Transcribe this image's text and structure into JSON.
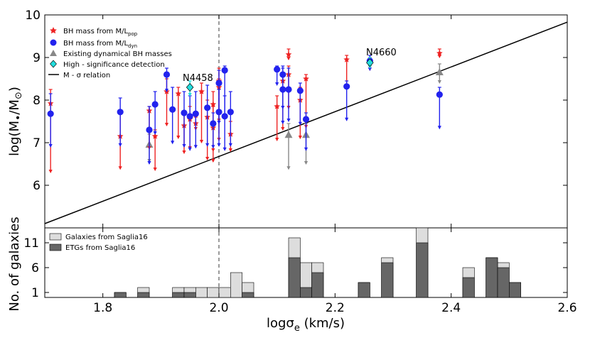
{
  "chart_data": [
    {
      "type": "scatter",
      "ylabel_main": "log(M",
      "ylabel_bullet": "•",
      "ylabel_mid": "/M",
      "ylabel_sun": "⊙",
      "ylabel_end": ")",
      "xlim": [
        1.7,
        2.6
      ],
      "ylim": [
        5.0,
        10.0
      ],
      "yticks": [
        "6",
        "7",
        "8",
        "9",
        "10"
      ],
      "legend": [
        {
          "label": "BH mass from M/L",
          "sub": "pop",
          "marker": "star",
          "color": "#ee2222"
        },
        {
          "label": "BH mass from M/L",
          "sub": "dyn",
          "marker": "circle",
          "color": "#2222ee"
        },
        {
          "label": "Existing dynamical BH masses",
          "sub": "",
          "marker": "triangle",
          "color": "#888888"
        },
        {
          "label": "High - significance detection",
          "sub": "",
          "marker": "diamond",
          "color": "#22dddd"
        },
        {
          "label": "M - σ relation",
          "sub": "",
          "marker": "line",
          "color": "#000000"
        }
      ],
      "annotations": [
        {
          "text": "N4458",
          "x": 1.95,
          "y": 8.55
        },
        {
          "text": "N4660",
          "x": 2.26,
          "y": 9.15
        }
      ],
      "relation_line": [
        [
          1.7,
          5.1
        ],
        [
          2.6,
          9.83
        ]
      ],
      "vline_x": 2.0,
      "series": [
        {
          "name": "BH mass from M/L_pop",
          "color": "#ee2222",
          "marker": "star",
          "points": [
            [
              1.71,
              7.92,
              6.3,
              8.25
            ],
            [
              1.83,
              7.15,
              6.38,
              7.75
            ],
            [
              1.88,
              7.75,
              6.85,
              7.85
            ],
            [
              1.89,
              7.15,
              6.35,
              7.3
            ],
            [
              1.91,
              8.2,
              7.4,
              8.5
            ],
            [
              1.93,
              8.15,
              7.1,
              8.3
            ],
            [
              1.94,
              7.4,
              6.75,
              7.75
            ],
            [
              1.95,
              7.55,
              6.85,
              7.85
            ],
            [
              1.96,
              7.45,
              7.3,
              7.6
            ],
            [
              1.97,
              8.2,
              7.0,
              8.4
            ],
            [
              1.98,
              7.6,
              6.6,
              8.0
            ],
            [
              1.99,
              7.35,
              6.55,
              7.85
            ],
            [
              1.99,
              7.9,
              6.8,
              8.2
            ],
            [
              2.0,
              8.45,
              7.05,
              8.75
            ],
            [
              2.0,
              8.3,
              7.5,
              8.5
            ],
            [
              2.02,
              7.2,
              6.8,
              7.5
            ],
            [
              2.1,
              7.85,
              7.05,
              8.1
            ],
            [
              2.11,
              8.45,
              7.3,
              8.6
            ],
            [
              2.12,
              8.6,
              7.8,
              8.8
            ],
            [
              2.12,
              9.07,
              8.95,
              9.2
            ],
            [
              2.14,
              8.0,
              7.1,
              8.3
            ],
            [
              2.15,
              8.5,
              7.35,
              8.6
            ],
            [
              2.22,
              8.95,
              8.3,
              9.05
            ],
            [
              2.26,
              8.85,
              8.7,
              9.0
            ],
            [
              2.38,
              9.1,
              9.0,
              9.2
            ]
          ]
        },
        {
          "name": "BH mass from M/L_dyn",
          "color": "#2222ee",
          "marker": "circle",
          "points": [
            [
              1.71,
              7.68,
              6.9,
              8.15
            ],
            [
              1.83,
              7.72,
              6.92,
              8.05
            ],
            [
              1.88,
              7.3,
              6.5,
              7.85
            ],
            [
              1.89,
              7.9,
              7.2,
              8.2
            ],
            [
              1.91,
              8.6,
              8.2,
              8.75
            ],
            [
              1.92,
              7.78,
              6.98,
              8.3
            ],
            [
              1.94,
              7.7,
              6.9,
              8.2
            ],
            [
              1.95,
              7.62,
              6.82,
              8.1
            ],
            [
              1.96,
              7.68,
              6.88,
              8.2
            ],
            [
              1.98,
              7.82,
              6.92,
              8.35
            ],
            [
              1.99,
              7.45,
              6.88,
              7.7
            ],
            [
              2.0,
              8.4,
              7.45,
              8.7
            ],
            [
              2.0,
              7.72,
              6.92,
              8.25
            ],
            [
              2.01,
              8.7,
              7.6,
              8.8
            ],
            [
              2.01,
              7.62,
              6.82,
              8.1
            ],
            [
              2.02,
              7.72,
              6.92,
              8.2
            ],
            [
              2.1,
              8.72,
              8.35,
              8.8
            ],
            [
              2.11,
              8.6,
              7.8,
              8.8
            ],
            [
              2.11,
              8.25,
              7.45,
              8.75
            ],
            [
              2.12,
              8.25,
              7.5,
              8.75
            ],
            [
              2.14,
              8.22,
              7.42,
              8.4
            ],
            [
              2.15,
              7.55,
              6.82,
              7.7
            ],
            [
              2.22,
              8.32,
              7.52,
              8.45
            ],
            [
              2.26,
              8.92,
              8.7,
              9.05
            ],
            [
              2.38,
              8.13,
              7.33,
              8.3
            ]
          ]
        },
        {
          "name": "Existing dynamical BH masses",
          "color": "#888888",
          "marker": "triangle",
          "points": [
            [
              1.88,
              6.95,
              6.55,
              7.2
            ],
            [
              2.12,
              7.18,
              6.38,
              7.45
            ],
            [
              2.15,
              7.18,
              6.5,
              7.45
            ],
            [
              2.38,
              8.65,
              8.4,
              8.85
            ]
          ]
        },
        {
          "name": "High-significance detection",
          "color": "#22dddd",
          "marker": "diamond",
          "points": [
            [
              1.95,
              8.3,
              8.1,
              8.45
            ],
            [
              2.26,
              8.88,
              8.75,
              9.0
            ]
          ]
        }
      ]
    },
    {
      "type": "bar",
      "ylabel": "No. of galaxies",
      "xlabel_main": "logσ",
      "xlabel_sub": "e",
      "xlabel_unit": " (km/s)",
      "xticks": [
        "1.8",
        "2.0",
        "2.2",
        "2.4",
        "2.6"
      ],
      "yticks": [
        "1",
        "6",
        "11"
      ],
      "xlim": [
        1.7,
        2.6
      ],
      "ylim": [
        0,
        14
      ],
      "bin_starts": [
        1.82,
        1.84,
        1.86,
        1.88,
        1.9,
        1.92,
        1.94,
        1.96,
        1.98,
        2.0,
        2.02,
        2.04,
        2.06,
        2.08,
        2.1,
        2.12,
        2.14,
        2.16,
        2.18,
        2.2,
        2.22,
        2.24,
        2.26,
        2.28,
        2.3,
        2.32,
        2.34,
        2.36,
        2.38,
        2.4,
        2.42,
        2.44,
        2.46,
        2.48,
        2.5,
        2.52,
        2.54,
        2.56,
        2.58
      ],
      "series": [
        {
          "name": "Galaxies from Saglia16",
          "color": "#dddddd",
          "values": [
            1,
            0,
            2,
            0,
            0,
            2,
            2,
            2,
            2,
            2,
            5,
            3,
            0,
            0,
            0,
            12,
            7,
            7,
            0,
            0,
            0,
            3,
            0,
            8,
            0,
            0,
            14,
            0,
            0,
            0,
            6,
            0,
            8,
            7,
            3,
            0,
            0,
            0,
            0
          ]
        },
        {
          "name": "ETGs from Saglia16",
          "color": "#666666",
          "values": [
            1,
            0,
            1,
            0,
            0,
            1,
            1,
            0,
            0,
            0,
            0,
            1,
            0,
            0,
            0,
            8,
            2,
            5,
            0,
            0,
            0,
            3,
            0,
            7,
            0,
            0,
            11,
            0,
            0,
            0,
            4,
            0,
            8,
            6,
            3,
            0,
            0,
            0,
            0
          ]
        }
      ],
      "legend": [
        {
          "label": "Galaxies from Saglia16",
          "color": "#dddddd"
        },
        {
          "label": "ETGs from Saglia16",
          "color": "#666666"
        }
      ]
    }
  ]
}
